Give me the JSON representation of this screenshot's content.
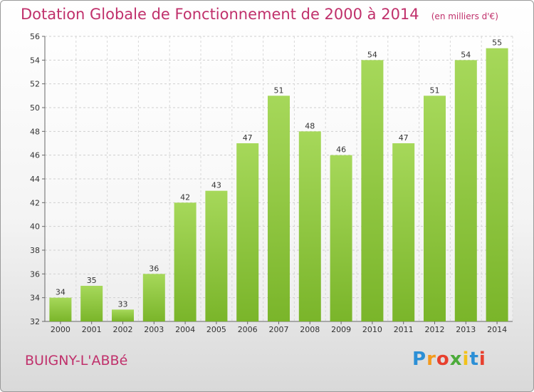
{
  "chart_data": {
    "type": "bar",
    "title": "Dotation Globale de Fonctionnement de 2000 à 2014",
    "subtitle": "(en milliers d'€)",
    "categories": [
      "2000",
      "2001",
      "2002",
      "2003",
      "2004",
      "2005",
      "2006",
      "2007",
      "2008",
      "2009",
      "2010",
      "2011",
      "2012",
      "2013",
      "2014"
    ],
    "values": [
      34,
      35,
      33,
      36,
      42,
      43,
      47,
      51,
      48,
      46,
      54,
      47,
      51,
      54,
      55
    ],
    "ylim": [
      32,
      56
    ],
    "yticks": [
      32,
      34,
      36,
      38,
      40,
      42,
      44,
      46,
      48,
      50,
      52,
      54,
      56
    ],
    "grid": true,
    "bar_color": "#7ab52a",
    "bar_color_light": "#a6d85a"
  },
  "commune": "BUIGNY-L'ABBé",
  "logo": {
    "letters": [
      "P",
      "r",
      "o",
      "x",
      "i",
      "t",
      "i"
    ],
    "colors": [
      "#2b8fd6",
      "#f39a1d",
      "#e8402e",
      "#4cab3a",
      "#f2c21a",
      "#2b8fd6",
      "#e8402e"
    ]
  }
}
